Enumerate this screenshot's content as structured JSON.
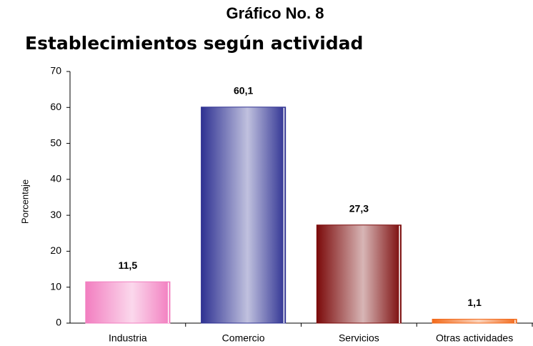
{
  "chart_data": {
    "type": "bar",
    "title": "Gráfico No. 8",
    "subtitle": "Establecimientos según actividad",
    "y_label": "Porcentaje",
    "categories": [
      "Industria",
      "Comercio",
      "Servicios",
      "Otras actividades"
    ],
    "values": [
      11.5,
      60.1,
      27.3,
      1.1
    ],
    "value_labels": [
      "11,5",
      "60,1",
      "27,3",
      "1,1"
    ],
    "colors": [
      "#f27ec0",
      "#2e3192",
      "#7b0a0a",
      "#f26a1b"
    ],
    "ylim": [
      0,
      70
    ],
    "yticks": [
      0,
      10,
      20,
      30,
      40,
      50,
      60,
      70
    ],
    "grid": false
  }
}
